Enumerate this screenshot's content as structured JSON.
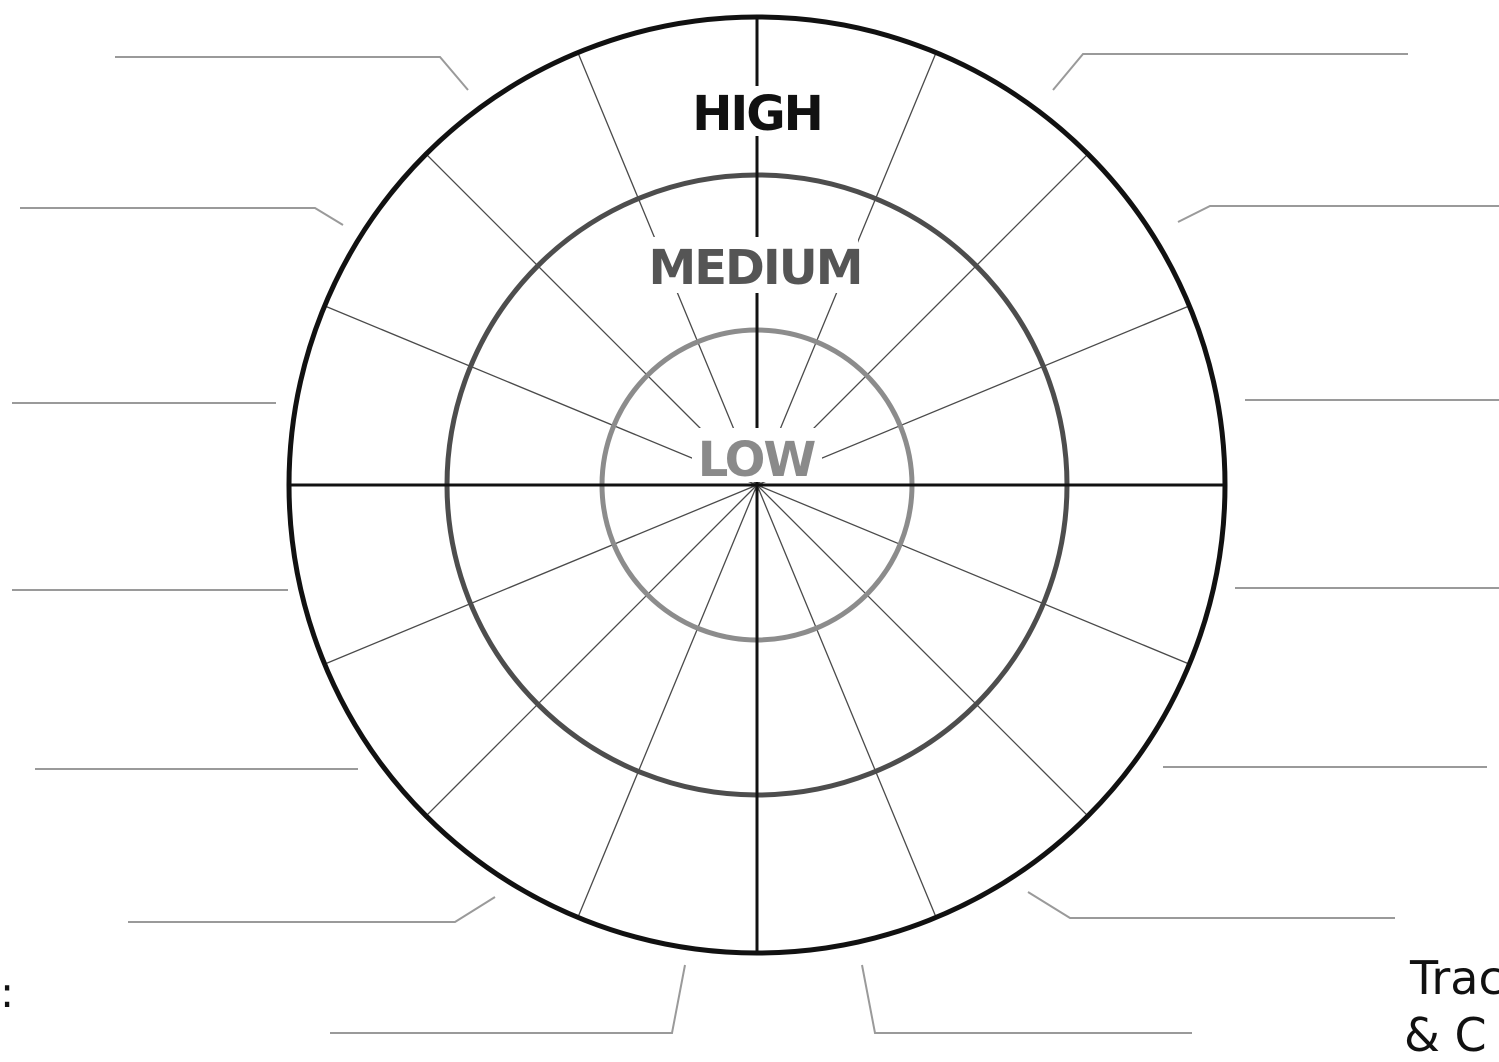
{
  "labels": {
    "high": "HIGH",
    "medium": "MEDIUM",
    "low": "LOW"
  },
  "edge_text": {
    "right_line1": "Trac",
    "right_line2": "& C",
    "left_fragment": ":"
  },
  "colors": {
    "outer_ring": "#111111",
    "middle_ring": "#4d4d4d",
    "inner_ring": "#8c8c8c",
    "high_text": "#111111",
    "medium_text": "#555555",
    "low_text": "#8a8a8a",
    "spokes": "#4a4a4a",
    "leader_lines": "#9a9a9a"
  },
  "segments": 16
}
